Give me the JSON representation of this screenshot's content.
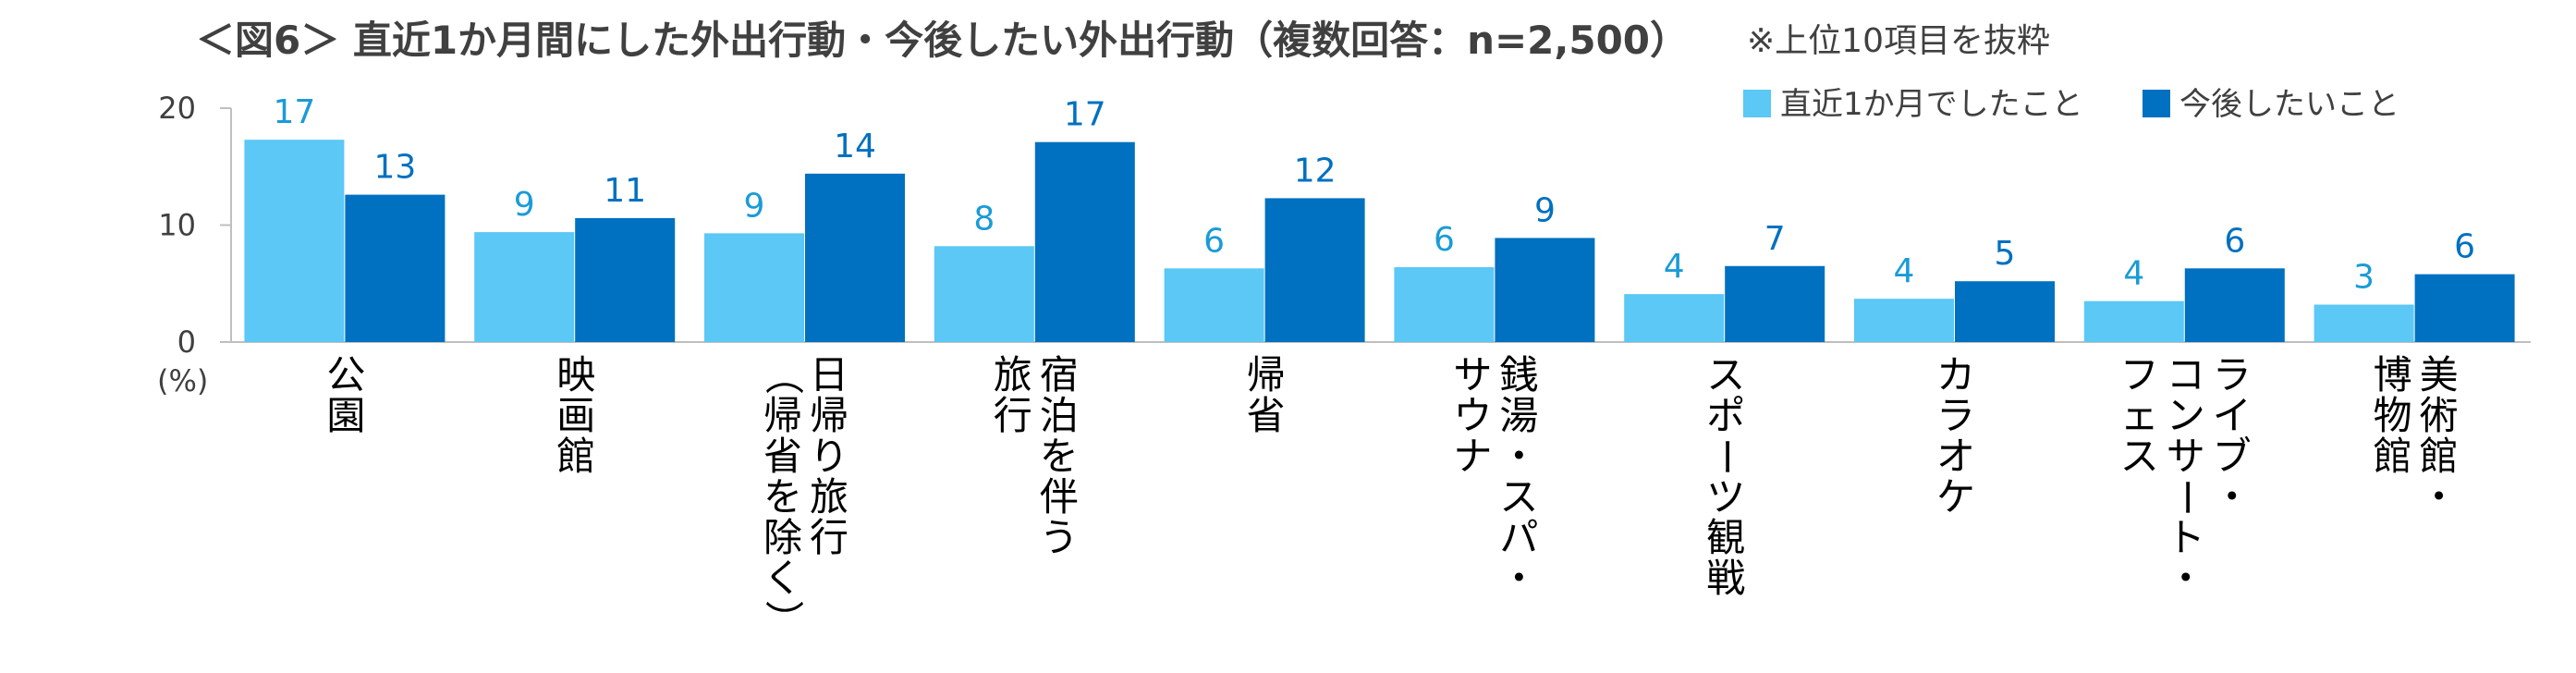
{
  "chart_data": {
    "type": "bar",
    "title": "＜図6＞ 直近1か月間にした外出行動・今後したい外出行動（複数回答：n=2,500）",
    "subtitle": "※上位10項目を抜粋",
    "ylabel": "(%)",
    "ylim": [
      0,
      20
    ],
    "yticks": [
      "0",
      "10",
      "20"
    ],
    "categories": [
      "公園",
      "映画館",
      "日帰り旅行（帰省を除く）",
      "宿泊を伴う旅行",
      "帰省",
      "銭湯・スパ・サウナ",
      "スポーツ観戦",
      "カラオケ",
      "ライブ・コンサート・フェス",
      "美術館・博物館"
    ],
    "category_lines": [
      [
        "公園"
      ],
      [
        "映画館"
      ],
      [
        "日帰り旅行",
        "（帰省を除く）"
      ],
      [
        "宿泊を伴う",
        "旅行"
      ],
      [
        "帰省"
      ],
      [
        "銭湯・スパ・",
        "サウナ"
      ],
      [
        "スポーツ観戦"
      ],
      [
        "カラオケ"
      ],
      [
        "ライブ・",
        "コンサート・",
        "フェス"
      ],
      [
        "美術館・",
        "博物館"
      ]
    ],
    "series": [
      {
        "name": "直近1か月でしたこと",
        "color": "#5BC8F5",
        "label_color": "#1A9BD7",
        "values": [
          17.3,
          9.4,
          9.3,
          8.2,
          6.3,
          6.4,
          4.1,
          3.7,
          3.5,
          3.2
        ],
        "labels": [
          "17",
          "9",
          "9",
          "8",
          "6",
          "6",
          "4",
          "4",
          "4",
          "3"
        ]
      },
      {
        "name": "今後したいこと",
        "color": "#0070C0",
        "label_color": "#0070C0",
        "values": [
          12.6,
          10.6,
          14.4,
          17.1,
          12.3,
          8.9,
          6.5,
          5.2,
          6.3,
          5.8
        ],
        "labels": [
          "13",
          "11",
          "14",
          "17",
          "12",
          "9",
          "7",
          "5",
          "6",
          "6"
        ]
      }
    ]
  }
}
